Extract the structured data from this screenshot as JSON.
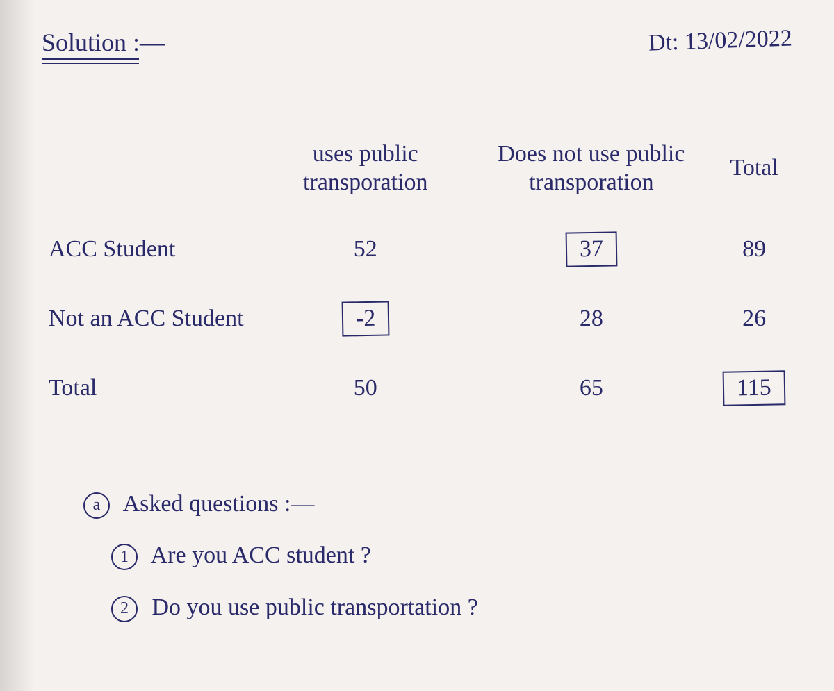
{
  "header": {
    "title": "Solution :—",
    "date_label": "Dt: 13/02/2022"
  },
  "table": {
    "type": "table",
    "columns": [
      "",
      "uses public transporation",
      "Does not use public transporation",
      "Total"
    ],
    "rows": [
      {
        "label": "ACC Student",
        "uses": "52",
        "notuses": "37",
        "total": "89",
        "boxed": [
          "notuses"
        ]
      },
      {
        "label": "Not an ACC Student",
        "uses": "-2",
        "notuses": "28",
        "total": "26",
        "boxed": [
          "uses"
        ]
      },
      {
        "label": "Total",
        "uses": "50",
        "notuses": "65",
        "total": "115",
        "boxed": [
          "total"
        ]
      }
    ],
    "text_color": "#2a2a6a",
    "box_border_color": "#2a2a6a",
    "font_family": "handwritten",
    "cell_fontsize_pt": 26,
    "header_fontsize_pt": 22,
    "background_color": "#f4f1ee"
  },
  "questions": {
    "section_marker": "a",
    "heading": "Asked questions :—",
    "items": [
      {
        "num": "1",
        "text": "Are you ACC student ?"
      },
      {
        "num": "2",
        "text": "Do you use public transportation ?"
      }
    ]
  }
}
